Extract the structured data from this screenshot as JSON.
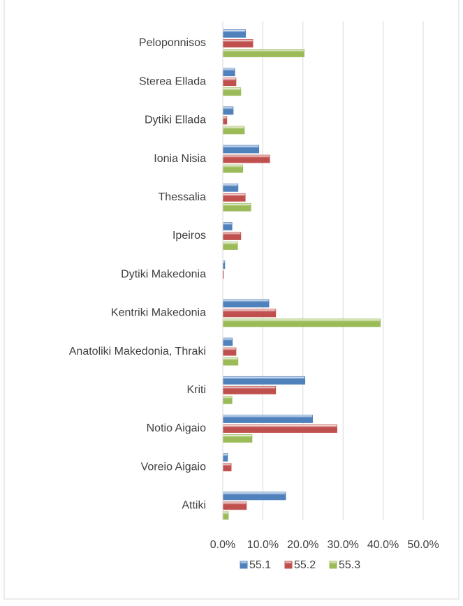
{
  "chart_data": {
    "type": "bar",
    "orientation": "horizontal",
    "categories": [
      "Peloponnisos",
      "Sterea Ellada",
      "Dytiki Ellada",
      "Ionia Nisia",
      "Thessalia",
      "Ipeiros",
      "Dytiki Makedonia",
      "Kentriki Makedonia",
      "Anatoliki Makedonia, Thraki",
      "Kriti",
      "Notio Aigaio",
      "Voreio Aigaio",
      "Attiki"
    ],
    "series": [
      {
        "name": "55.1",
        "color": "#4f81bd",
        "values": [
          5.7,
          3.0,
          2.6,
          9.0,
          3.8,
          2.3,
          0.5,
          11.5,
          2.4,
          20.5,
          22.4,
          1.2,
          15.7
        ]
      },
      {
        "name": "55.2",
        "color": "#c0504d",
        "values": [
          7.5,
          3.3,
          1.0,
          11.7,
          5.6,
          4.5,
          0.2,
          13.2,
          3.3,
          13.2,
          28.5,
          2.1,
          5.9
        ]
      },
      {
        "name": "55.3",
        "color": "#9bbb59",
        "values": [
          20.3,
          4.5,
          5.4,
          5.0,
          7.0,
          3.7,
          0,
          39.3,
          3.8,
          2.3,
          7.3,
          0,
          1.4
        ]
      }
    ],
    "xlim": [
      0,
      50
    ],
    "xticks": [
      {
        "value": 0,
        "label": "0.0%"
      },
      {
        "value": 10,
        "label": "10.0%"
      },
      {
        "value": 20,
        "label": "20.0%"
      },
      {
        "value": 30,
        "label": "30.0%"
      },
      {
        "value": 40,
        "label": "40.0%"
      },
      {
        "value": 50,
        "label": "50.0%"
      }
    ],
    "grid": true,
    "legend": "bottom"
  }
}
